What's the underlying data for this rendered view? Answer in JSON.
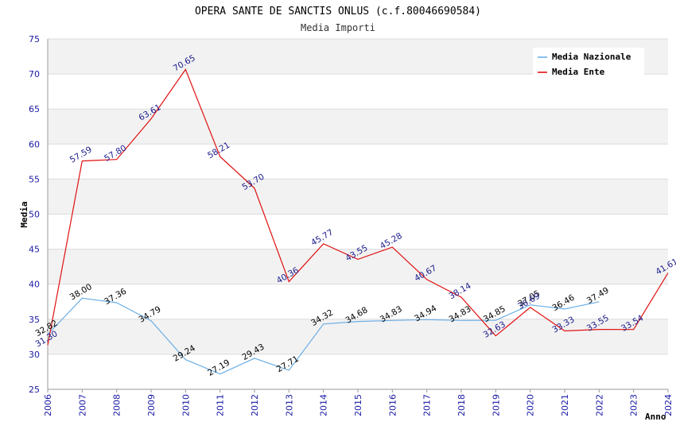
{
  "chart_data": {
    "type": "line",
    "title": "OPERA SANTE DE SANCTIS ONLUS (c.f.80046690584)",
    "subtitle": "Media Importi",
    "xlabel": "Anno",
    "ylabel": "Media",
    "ylim": [
      25,
      75
    ],
    "yticks": [
      25,
      30,
      35,
      40,
      45,
      50,
      55,
      60,
      65,
      70,
      75
    ],
    "categories": [
      "2006",
      "2007",
      "2008",
      "2009",
      "2010",
      "2011",
      "2012",
      "2013",
      "2014",
      "2015",
      "2016",
      "2017",
      "2018",
      "2019",
      "2020",
      "2021",
      "2022",
      "2023",
      "2024"
    ],
    "legend_position": "top-right",
    "grid": true,
    "series": [
      {
        "name": "Media Nazionale",
        "color": "#6aaee6",
        "label_color": "#000000",
        "values": [
          32.82,
          38.0,
          37.36,
          34.79,
          29.24,
          27.19,
          29.43,
          27.71,
          34.32,
          34.68,
          34.83,
          34.94,
          34.83,
          34.85,
          37.05,
          36.46,
          37.49,
          null,
          null
        ],
        "labels": [
          "32.82",
          "38.00",
          "37.36",
          "34.79",
          "29.24",
          "27.19",
          "29.43",
          "27.71",
          "34.32",
          "34.68",
          "34.83",
          "34.94",
          "34.83",
          "34.85",
          "37.05",
          "36.46",
          "37.49",
          "",
          ""
        ]
      },
      {
        "name": "Media Ente",
        "color": "#e01010",
        "label_color": "#1a1a8c",
        "values": [
          31.3,
          57.59,
          57.8,
          63.61,
          70.65,
          58.21,
          53.7,
          40.36,
          45.77,
          43.55,
          45.28,
          40.67,
          38.14,
          32.63,
          36.69,
          33.33,
          33.55,
          33.54,
          41.61
        ],
        "labels": [
          "31.30",
          "57.59",
          "57.80",
          "63.61",
          "70.65",
          "58.21",
          "53.70",
          "40.36",
          "45.77",
          "43.55",
          "45.28",
          "40.67",
          "38.14",
          "32.63",
          "36.69",
          "33.33",
          "33.55",
          "33.54",
          "41.61"
        ]
      }
    ],
    "colors": {
      "band": "#f2f2f2",
      "gridline": "#dcdcdc",
      "axis": "#999999",
      "tick_text": "#1a1aa6"
    }
  }
}
